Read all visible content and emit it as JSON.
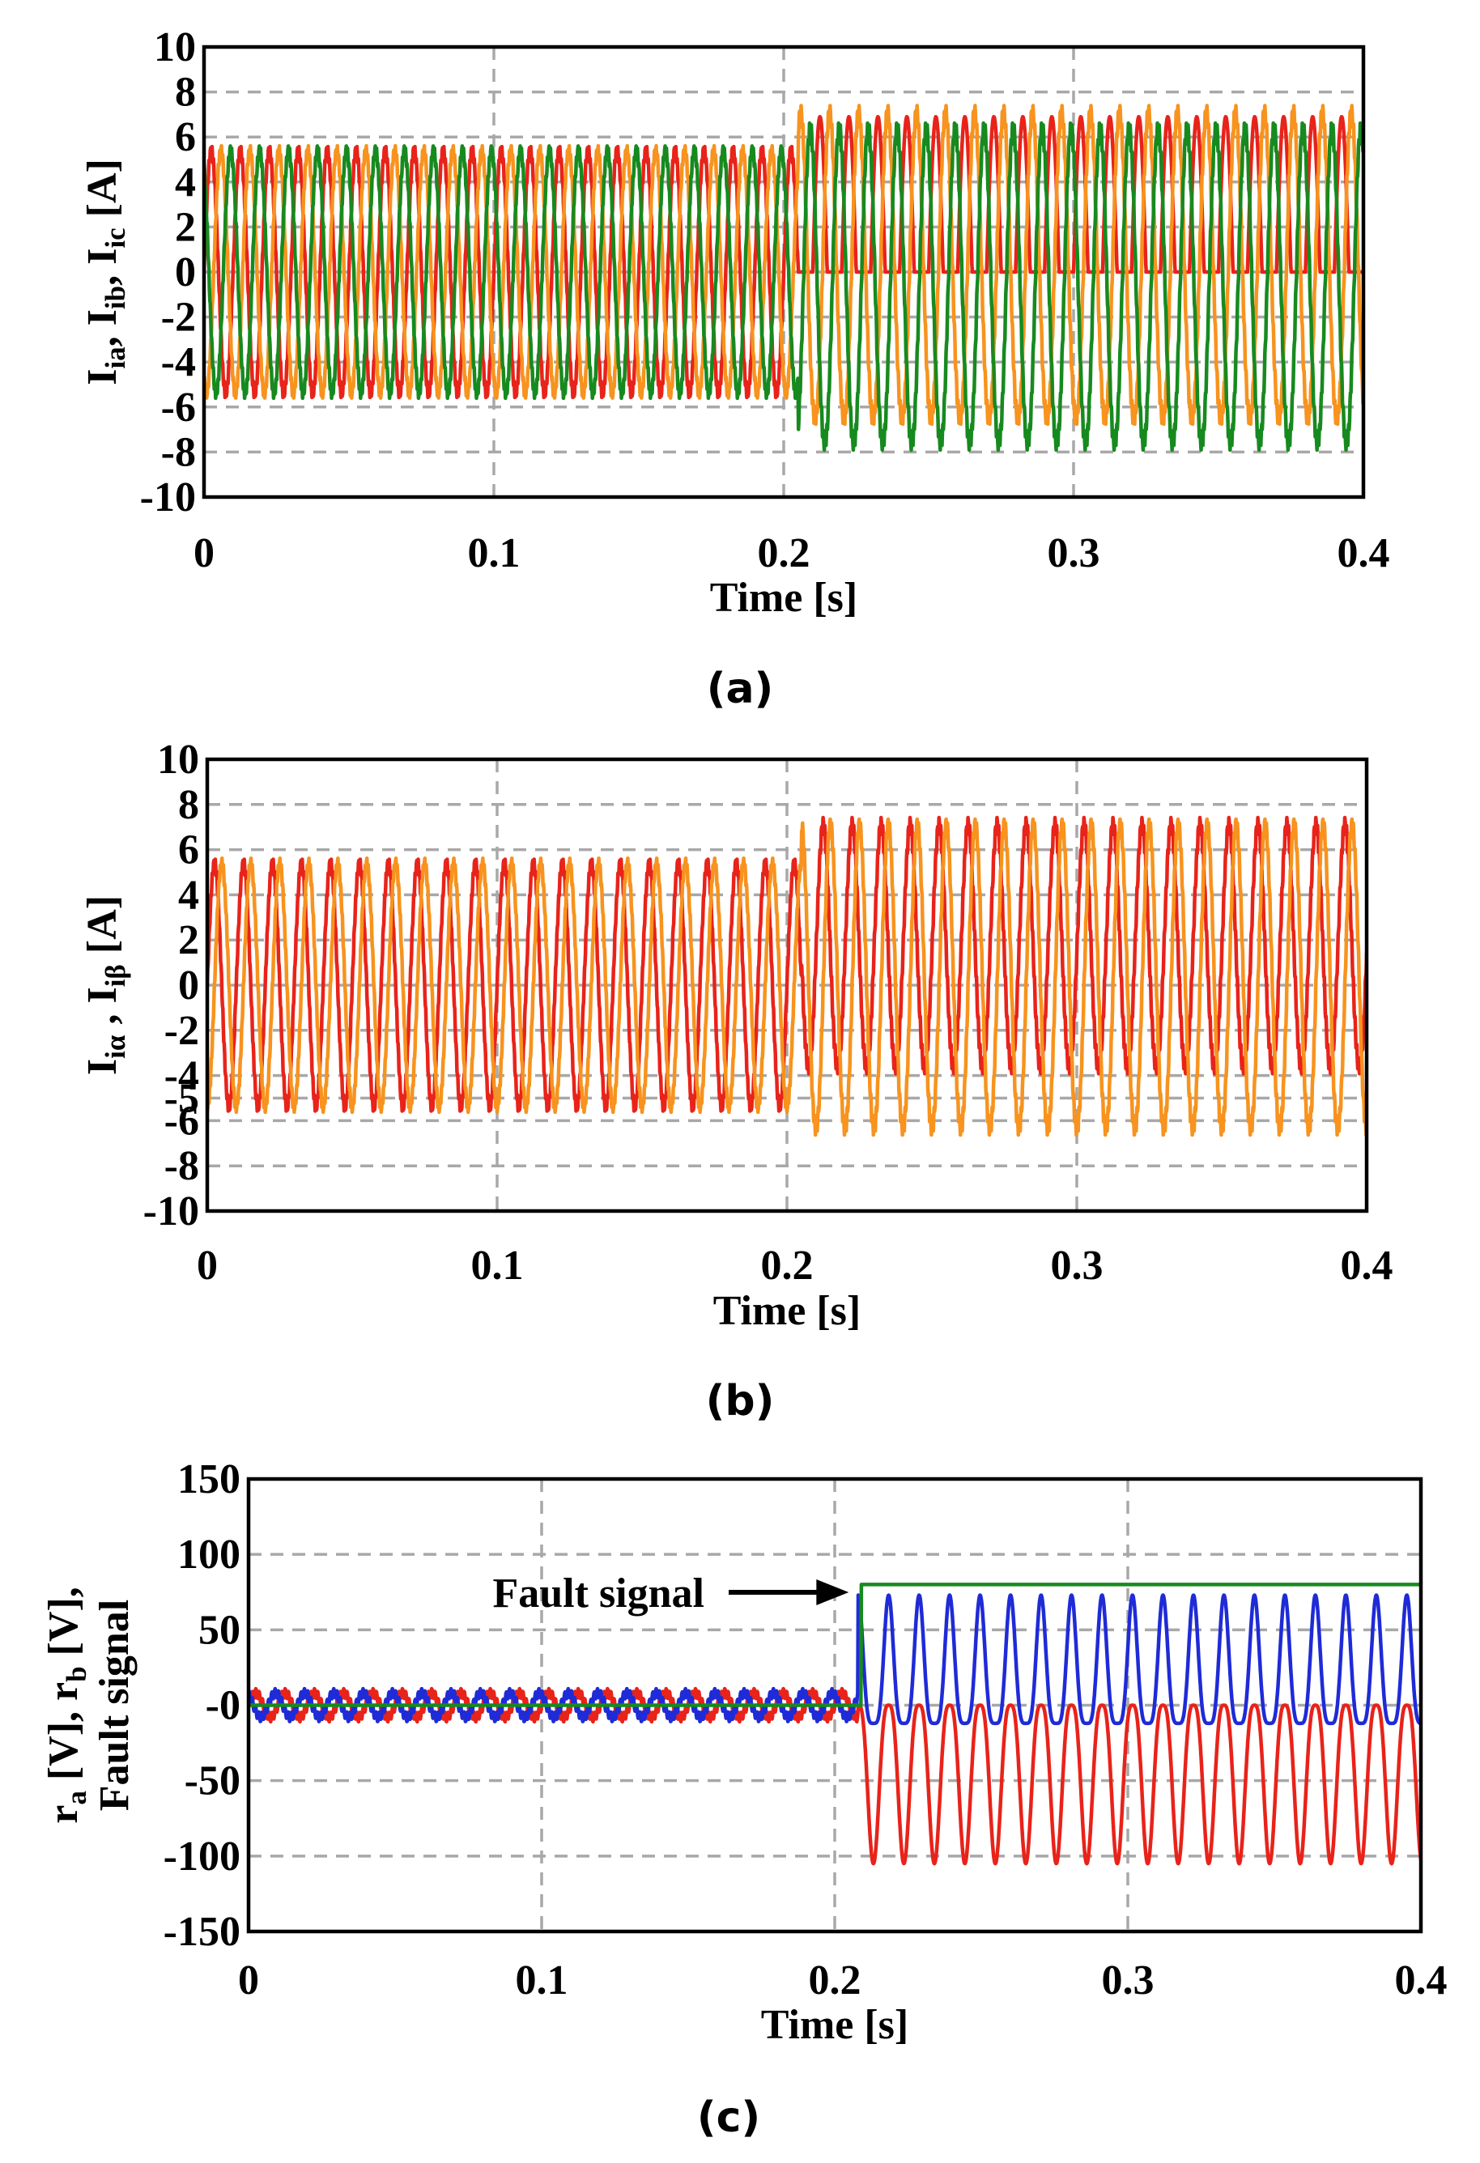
{
  "chart_data": [
    {
      "id": "a",
      "type": "line",
      "caption": "(a)",
      "xlabel": "Time [s]",
      "ylabel": [
        "I",
        "ia",
        ", I",
        "ib",
        ", I",
        "ic",
        " [A]"
      ],
      "xlim": [
        0,
        0.4
      ],
      "ylim": [
        -10,
        10
      ],
      "xticks": [
        0,
        0.1,
        0.2,
        0.3,
        0.4
      ],
      "xtick_labels": [
        "0",
        "0.1",
        "0.2",
        "0.3",
        "0.4"
      ],
      "yticks": [
        -10,
        -8,
        -6,
        -4,
        -2,
        0,
        2,
        4,
        6,
        8,
        10
      ],
      "ytick_labels": [
        "-10",
        "-8",
        "-6",
        "-4",
        "-2",
        "0",
        "2",
        "4",
        "6",
        "8",
        "10"
      ],
      "grid": true,
      "fundamental_hz": 100,
      "fault_time_s": 0.205,
      "series": [
        {
          "name": "I_ia",
          "color": "#e8231a",
          "amp_before": 5.4,
          "max_after": 6.9,
          "min_after": 0.0,
          "phase_deg": 0
        },
        {
          "name": "I_ib",
          "color": "#f7931e",
          "amp_before": 5.4,
          "max_after": 7.1,
          "min_after": -6.5,
          "phase_deg": -120
        },
        {
          "name": "I_ic",
          "color": "#178a1f",
          "amp_before": 5.4,
          "max_after": 6.4,
          "min_after": -7.6,
          "phase_deg": 120
        }
      ]
    },
    {
      "id": "b",
      "type": "line",
      "caption": "(b)",
      "xlabel": "Time [s]",
      "ylabel": [
        "I",
        "iα",
        " , I",
        "iβ",
        "  [A]"
      ],
      "xlim": [
        0,
        0.4
      ],
      "ylim": [
        -10,
        10
      ],
      "xticks": [
        0,
        0.1,
        0.2,
        0.3,
        0.4
      ],
      "xtick_labels": [
        "0",
        "0.1",
        "0.2",
        "0.3",
        "0.4"
      ],
      "yticks": [
        -10,
        -8,
        -6,
        -5,
        -4,
        -2,
        0,
        2,
        4,
        6,
        8,
        10
      ],
      "ytick_labels": [
        "-10",
        "-8",
        "-6",
        "-5",
        "-4",
        "-2",
        "0",
        "2",
        "4",
        "6",
        "8",
        "10"
      ],
      "grid": true,
      "fundamental_hz": 100,
      "fault_time_s": 0.205,
      "series": [
        {
          "name": "I_iα",
          "color": "#e8231a",
          "amp_before": 5.4,
          "max_after": 7.1,
          "min_after": -3.6,
          "phase_deg": 0
        },
        {
          "name": "I_iβ",
          "color": "#f7931e",
          "amp_before": 5.4,
          "max_after": 7.1,
          "min_after": -6.3,
          "phase_deg": -90
        }
      ]
    },
    {
      "id": "c",
      "type": "line",
      "caption": "(c)",
      "xlabel": "Time [s]",
      "ylabel_lines": [
        [
          "r",
          "a",
          " [V], r",
          "b",
          " [V],"
        ],
        [
          "Fault signal"
        ]
      ],
      "xlim": [
        0,
        0.4
      ],
      "ylim": [
        -150,
        150
      ],
      "xticks": [
        0,
        0.1,
        0.2,
        0.3,
        0.4
      ],
      "xtick_labels": [
        "0",
        "0.1",
        "0.2",
        "0.3",
        "0.4"
      ],
      "yticks": [
        -150,
        -100,
        -50,
        0,
        50,
        100,
        150
      ],
      "ytick_labels": [
        "-150",
        "-100",
        "-50",
        "-0",
        "50",
        "100",
        "150"
      ],
      "grid": true,
      "fundamental_hz": 50,
      "fault_time_s": 0.208,
      "annotation": {
        "text": "Fault signal",
        "points_to_time_s": 0.207,
        "points_to_value": 80
      },
      "series": [
        {
          "name": "r_a",
          "color": "#e8231a",
          "ripple_before": 8,
          "max_after": 0,
          "min_after": -105
        },
        {
          "name": "r_b",
          "color": "#1f2bd6",
          "ripple_before": 8,
          "max_after": 73,
          "min_after": -12
        },
        {
          "name": "Fault signal",
          "color": "#178a1f",
          "value_before": 0,
          "value_after": 80,
          "step_time_s": 0.209
        }
      ]
    }
  ]
}
